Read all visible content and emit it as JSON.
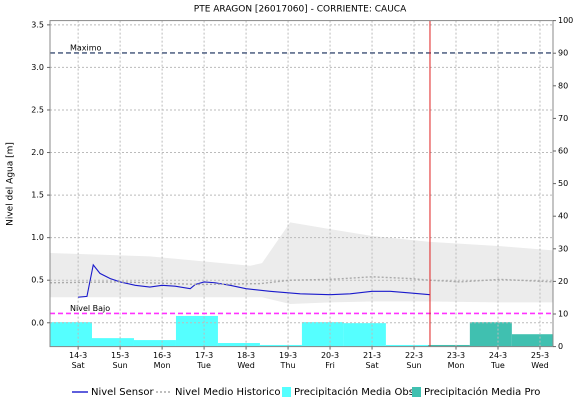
{
  "chart_data": {
    "type": "line",
    "title": "PTE ARAGON   [26017060] - CORRIENTE: CAUCA",
    "y_label": "Nivel del Agua [m]",
    "xlim": [
      -0.67,
      11.31
    ],
    "xticks": [
      {
        "value": 0,
        "label": "14-3"
      },
      {
        "value": 1,
        "label": "15-3"
      },
      {
        "value": 2,
        "label": "16-3"
      },
      {
        "value": 3,
        "label": "17-3"
      },
      {
        "value": 4,
        "label": "18-3"
      },
      {
        "value": 5,
        "label": "19-3"
      },
      {
        "value": 6,
        "label": "20-3"
      },
      {
        "value": 7,
        "label": "21-3"
      },
      {
        "value": 8,
        "label": "22-3"
      },
      {
        "value": 9,
        "label": "23-3"
      },
      {
        "value": 10,
        "label": "24-3"
      },
      {
        "value": 11,
        "label": "25-3"
      }
    ],
    "xtick_weekdays": [
      "Sat",
      "Sun",
      "Mon",
      "Tue",
      "Wed",
      "Thu",
      "Fri",
      "Sat",
      "Sun",
      "Mon",
      "Tue",
      "Wed"
    ],
    "ylim": [
      -0.28,
      3.55
    ],
    "yticks": [
      {
        "value": 0,
        "label": "0.0"
      },
      0.5,
      {
        "value": 1,
        "label": "1.0"
      },
      1.5,
      {
        "value": 2,
        "label": "2.0"
      },
      2.5,
      {
        "value": 3,
        "label": "3.0"
      },
      3.5
    ],
    "y2lim": [
      0,
      100
    ],
    "y2ticks": [
      0,
      10,
      20,
      30,
      40,
      50,
      60,
      70,
      80,
      90,
      100
    ],
    "grid": true,
    "band": {
      "color": "#ececec",
      "x": [
        -0.67,
        1.71,
        4.1,
        4.38,
        5.05,
        6,
        7,
        8.38,
        10.05,
        11.31
      ],
      "upper": [
        0.82,
        0.78,
        0.67,
        0.7,
        1.18,
        1.1,
        1.02,
        0.95,
        0.9,
        0.85
      ],
      "lower": [
        0.3,
        0.3,
        0.3,
        0.3,
        0.22,
        0.24,
        0.25,
        0.25,
        0.24,
        0.24
      ]
    },
    "reference_lines": [
      {
        "label": "Maximo",
        "value": 3.17,
        "color": "#5a6a8a"
      },
      {
        "label": "Nivel Bajo",
        "value": 0.11,
        "color": "#ff33ff"
      }
    ],
    "now_line": {
      "x": 8.38,
      "color": "#e02020"
    },
    "series": [
      {
        "name": "Nivel Sensor",
        "color": "#1a1acc",
        "x": [
          0,
          0.21,
          0.36,
          0.52,
          0.76,
          1,
          1.36,
          1.71,
          2,
          2.31,
          2.67,
          2.79,
          3,
          3.26,
          3.62,
          4,
          4.57,
          5.29,
          6,
          6.48,
          7,
          7.43,
          7.9,
          8.38
        ],
        "values": [
          0.3,
          0.31,
          0.68,
          0.58,
          0.52,
          0.48,
          0.44,
          0.42,
          0.44,
          0.43,
          0.4,
          0.45,
          0.48,
          0.47,
          0.44,
          0.4,
          0.37,
          0.34,
          0.33,
          0.34,
          0.37,
          0.37,
          0.35,
          0.33
        ]
      },
      {
        "name": "Nivel Medio Historico",
        "color": "#aaaaaa",
        "dashed": true,
        "x": [
          -0.67,
          1,
          2.9,
          4.33,
          5.05,
          6,
          7,
          7.9,
          8.38,
          9.1,
          10.05,
          11.31
        ],
        "values": [
          0.47,
          0.48,
          0.45,
          0.46,
          0.5,
          0.51,
          0.54,
          0.52,
          0.5,
          0.48,
          0.51,
          0.48
        ]
      },
      {
        "name": "Precipitación Media Obs",
        "color": "#55ffff",
        "kind": "bars",
        "axis": "y2",
        "bins": [
          -0.67,
          0.33,
          1.33,
          2.33,
          3.33,
          4.33,
          5.33,
          6.33,
          7.33,
          8.33
        ],
        "values": [
          7.5,
          2.6,
          2,
          9.4,
          1.1,
          0.5,
          7.5,
          7.2,
          0.5
        ]
      },
      {
        "name": "Precipitación Media Pro",
        "color": "#40c0b0",
        "kind": "bars",
        "axis": "y2",
        "bins": [
          8.33,
          9.33,
          10.33,
          11.33
        ],
        "values": [
          0.5,
          7.5,
          3.8
        ]
      }
    ]
  }
}
